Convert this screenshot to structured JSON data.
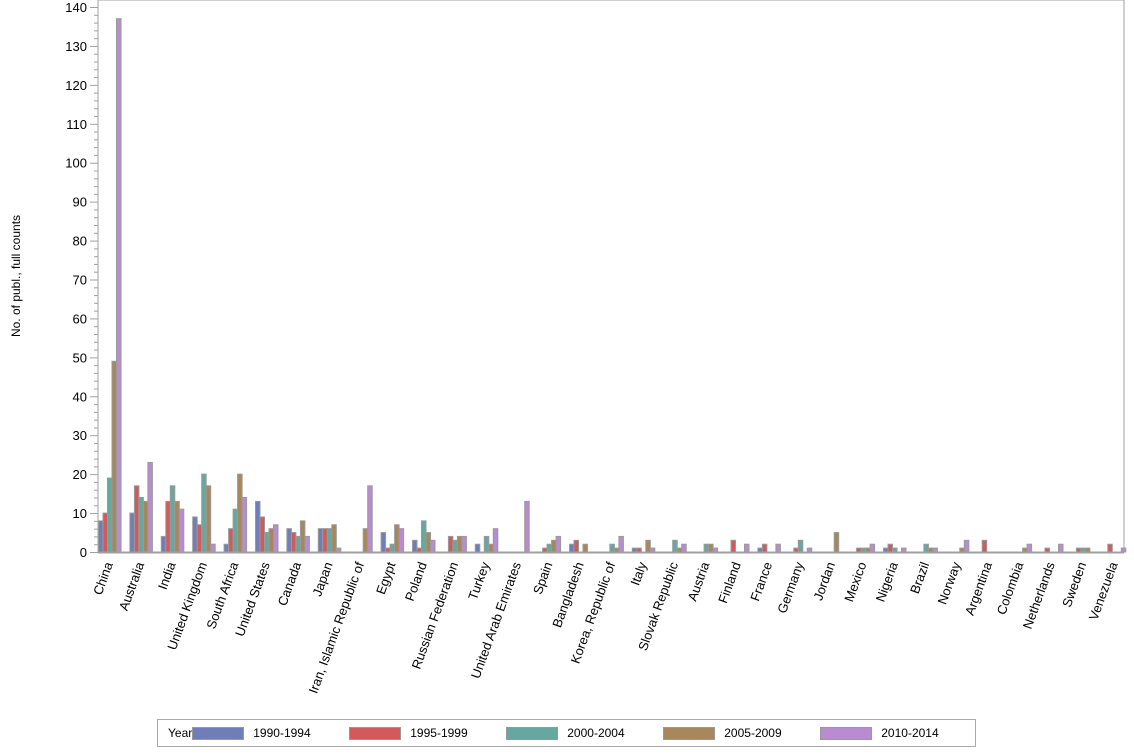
{
  "chart_data": {
    "type": "bar",
    "title": "",
    "xlabel": "",
    "ylabel": "No. of publ., full counts",
    "ylim": [
      0,
      140
    ],
    "yticks": [
      0,
      10,
      20,
      30,
      40,
      50,
      60,
      70,
      80,
      90,
      100,
      110,
      120,
      130,
      140
    ],
    "legend_title": "Year",
    "legend_position": "bottom",
    "categories": [
      "China",
      "Australia",
      "India",
      "United Kingdom",
      "South Africa",
      "United States",
      "Canada",
      "Japan",
      "Iran, Islamic Republic of",
      "Egypt",
      "Poland",
      "Russian Federation",
      "Turkey",
      "United Arab Emirates",
      "Spain",
      "Bangladesh",
      "Korea, Republic of",
      "Italy",
      "Slovak Republic",
      "Austria",
      "Finland",
      "France",
      "Germany",
      "Jordan",
      "Mexico",
      "Nigeria",
      "Brazil",
      "Norway",
      "Argentina",
      "Colombia",
      "Netherlands",
      "Sweden",
      "Venezuela"
    ],
    "series": [
      {
        "name": "1990-1994",
        "color": "#6f7db8",
        "values": [
          8,
          10,
          4,
          9,
          2,
          13,
          6,
          6,
          0,
          5,
          3,
          0,
          2,
          0,
          0,
          2,
          0,
          1,
          0,
          0,
          0,
          1,
          0,
          0,
          0,
          1,
          0,
          0,
          0,
          0,
          0,
          0,
          0
        ]
      },
      {
        "name": "1995-1999",
        "color": "#d25a5a",
        "values": [
          10,
          17,
          13,
          7,
          6,
          9,
          5,
          6,
          0,
          1,
          1,
          4,
          0,
          0,
          1,
          3,
          0,
          1,
          0,
          0,
          3,
          2,
          1,
          0,
          1,
          2,
          0,
          0,
          3,
          0,
          1,
          1,
          2
        ]
      },
      {
        "name": "2000-2004",
        "color": "#66a8a0",
        "values": [
          19,
          14,
          17,
          20,
          11,
          5,
          4,
          6,
          0,
          2,
          8,
          3,
          4,
          0,
          2,
          0,
          2,
          0,
          3,
          2,
          0,
          0,
          3,
          0,
          1,
          1,
          2,
          0,
          0,
          0,
          0,
          1,
          0
        ]
      },
      {
        "name": "2005-2009",
        "color": "#a8875c",
        "values": [
          49,
          13,
          13,
          17,
          20,
          6,
          8,
          7,
          6,
          7,
          5,
          4,
          2,
          0,
          3,
          2,
          1,
          3,
          1,
          2,
          0,
          0,
          0,
          5,
          1,
          0,
          1,
          1,
          0,
          1,
          0,
          1,
          0
        ]
      },
      {
        "name": "2010-2014",
        "color": "#b98bd0",
        "values": [
          137,
          23,
          11,
          2,
          14,
          7,
          4,
          1,
          17,
          6,
          3,
          4,
          6,
          13,
          4,
          0,
          4,
          1,
          2,
          1,
          2,
          2,
          1,
          0,
          2,
          1,
          1,
          3,
          0,
          2,
          2,
          0,
          1
        ]
      }
    ]
  }
}
